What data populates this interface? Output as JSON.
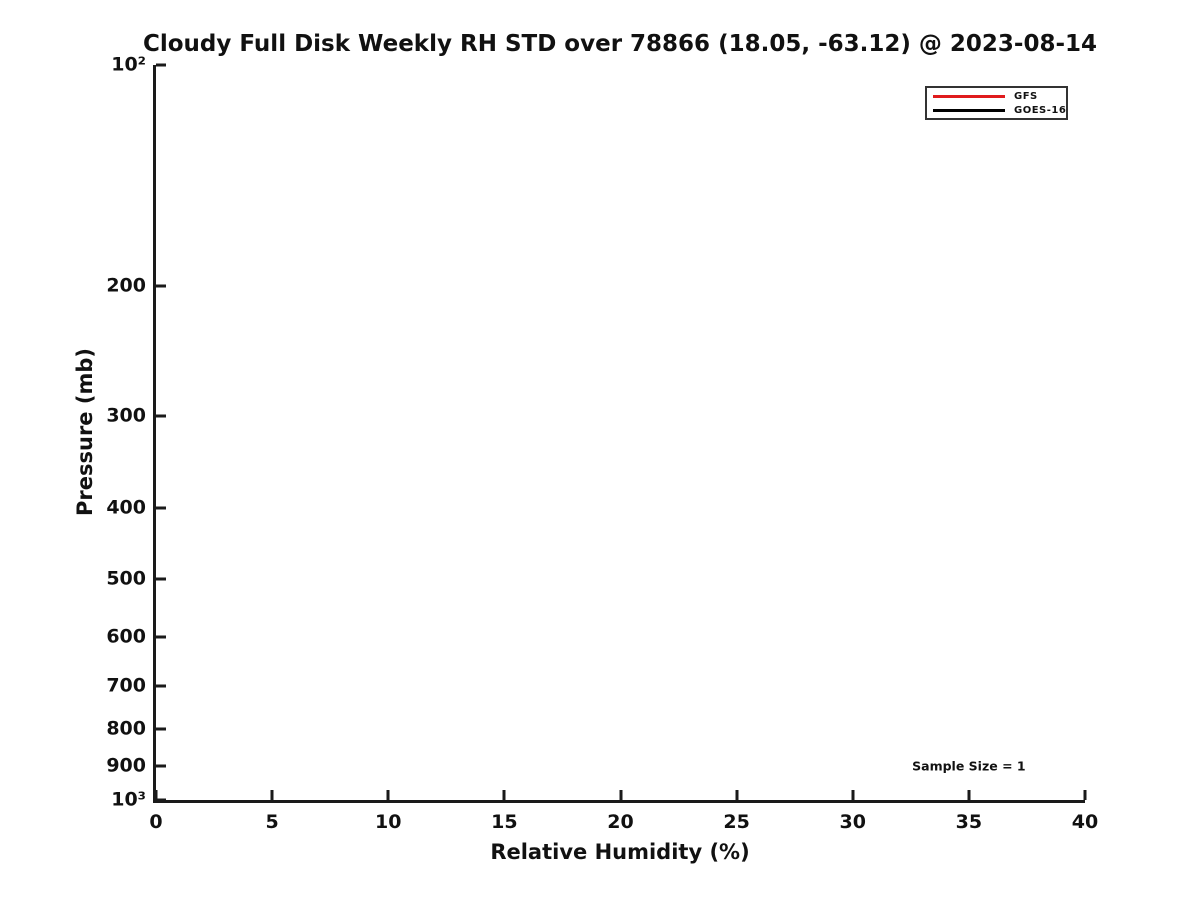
{
  "chart_data": {
    "type": "line",
    "title": "Cloudy Full Disk Weekly RH STD over 78866 (18.05, -63.12) @ 2023-08-14",
    "xlabel": "Relative Humidity (%)",
    "ylabel": "Pressure (mb)",
    "xlim": [
      0,
      40
    ],
    "ylim": [
      100,
      1000
    ],
    "yscale": "log",
    "y_axis_inverted": true,
    "grid": false,
    "xticks": [
      {
        "value": 0,
        "label": "0"
      },
      {
        "value": 5,
        "label": "5"
      },
      {
        "value": 10,
        "label": "10"
      },
      {
        "value": 15,
        "label": "15"
      },
      {
        "value": 20,
        "label": "20"
      },
      {
        "value": 25,
        "label": "25"
      },
      {
        "value": 30,
        "label": "30"
      },
      {
        "value": 35,
        "label": "35"
      },
      {
        "value": 40,
        "label": "40"
      }
    ],
    "yticks": [
      {
        "value": 100,
        "label": "10²"
      },
      {
        "value": 200,
        "label": "200"
      },
      {
        "value": 300,
        "label": "300"
      },
      {
        "value": 400,
        "label": "400"
      },
      {
        "value": 500,
        "label": "500"
      },
      {
        "value": 600,
        "label": "600"
      },
      {
        "value": 700,
        "label": "700"
      },
      {
        "value": 800,
        "label": "800"
      },
      {
        "value": 900,
        "label": "900"
      },
      {
        "value": 1000,
        "label": "10³"
      }
    ],
    "legend": {
      "position": "top-right",
      "entries": [
        {
          "label": "GFS",
          "color": "#e01b1d"
        },
        {
          "label": "GOES-16",
          "color": "#000000"
        }
      ]
    },
    "series": [
      {
        "name": "GFS",
        "color": "#e01b1d",
        "points": []
      },
      {
        "name": "GOES-16",
        "color": "#000000",
        "points": []
      }
    ],
    "annotation": {
      "text": "Sample Size = 1",
      "x": 35,
      "y": 900
    },
    "colors": {
      "spine": "#1a1a1a",
      "text": "#111111",
      "background": "#ffffff"
    }
  }
}
